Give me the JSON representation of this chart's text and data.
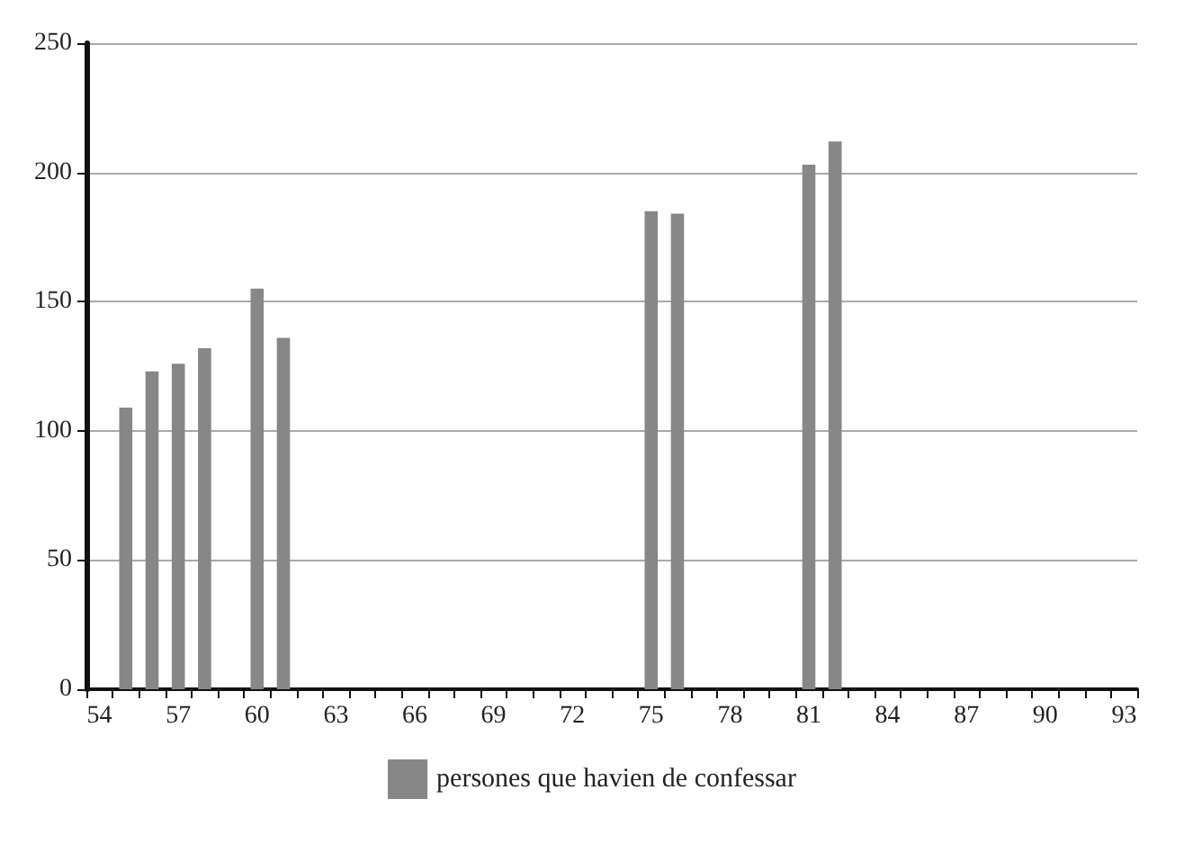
{
  "chart_data": {
    "type": "bar",
    "categories": [
      "54",
      null,
      null,
      "57",
      null,
      null,
      "60",
      null,
      null,
      "63",
      null,
      null,
      "66",
      null,
      null,
      "69",
      null,
      null,
      "72",
      null,
      null,
      "75",
      null,
      null,
      "78",
      null,
      null,
      "81",
      null,
      null,
      "84",
      null,
      null,
      "87",
      null,
      null,
      "90",
      null,
      null,
      "93"
    ],
    "series": [
      {
        "name": "persones que havien de confessar",
        "color": "#878787",
        "values": [
          null,
          109,
          123,
          126,
          132,
          null,
          155,
          136,
          null,
          null,
          null,
          null,
          null,
          null,
          null,
          null,
          null,
          null,
          null,
          null,
          null,
          185,
          184,
          null,
          null,
          null,
          null,
          203,
          212,
          null,
          null,
          null,
          null,
          null,
          null,
          null,
          null,
          null,
          null,
          null
        ]
      }
    ],
    "ylim": [
      0,
      250
    ],
    "yticks": [
      0,
      50,
      100,
      150,
      200,
      250
    ],
    "grid": "y",
    "legend": "bottom"
  }
}
